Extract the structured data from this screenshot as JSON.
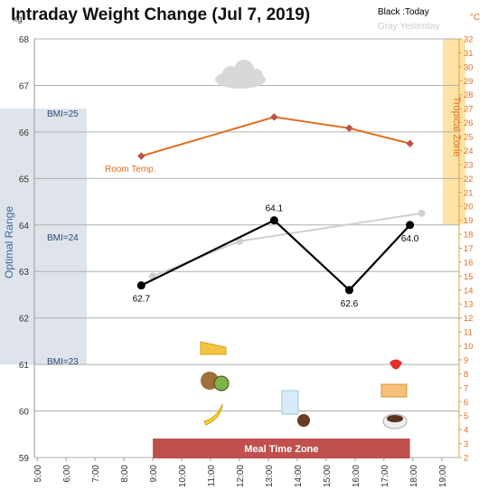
{
  "chart_data": {
    "type": "line",
    "title": "Intraday Weight Change (Jul 7, 2019)",
    "y_unit": "kg",
    "y2_unit": "°C",
    "xlim": [
      4.9,
      19.6
    ],
    "xticks": [
      {
        "value": 5,
        "label": "5:00"
      },
      {
        "value": 6,
        "label": "6:00"
      },
      {
        "value": 7,
        "label": "7:00"
      },
      {
        "value": 8,
        "label": "8:00"
      },
      {
        "value": 9,
        "label": "9:00"
      },
      {
        "value": 10,
        "label": "10:00"
      },
      {
        "value": 11,
        "label": "11:00"
      },
      {
        "value": 12,
        "label": "12:00"
      },
      {
        "value": 13,
        "label": "13:00"
      },
      {
        "value": 14,
        "label": "14:00"
      },
      {
        "value": 15,
        "label": "15:00"
      },
      {
        "value": 16,
        "label": "16:00"
      },
      {
        "value": 17,
        "label": "17:00"
      },
      {
        "value": 18,
        "label": "18:00"
      },
      {
        "value": 19,
        "label": "19:00"
      }
    ],
    "ylim": [
      59,
      68
    ],
    "yticks": [
      59,
      60,
      61,
      62,
      63,
      64,
      65,
      66,
      67,
      68
    ],
    "y2lim": [
      2,
      32
    ],
    "y2ticks": [
      2,
      3,
      4,
      5,
      6,
      7,
      8,
      9,
      10,
      11,
      12,
      13,
      14,
      15,
      16,
      17,
      18,
      19,
      20,
      21,
      22,
      23,
      24,
      25,
      26,
      27,
      28,
      29,
      30,
      31,
      32
    ],
    "grid": true,
    "series": [
      {
        "name": "Gray:Yesterday",
        "color": "#d0d0d0",
        "x": [
          9.0,
          12.0,
          18.3
        ],
        "values": [
          62.9,
          63.65,
          64.25
        ]
      },
      {
        "name": "Black :Today",
        "color": "#000000",
        "x": [
          8.6,
          13.2,
          15.8,
          17.9
        ],
        "values": [
          62.7,
          64.1,
          62.6,
          64.0
        ],
        "value_labels": [
          "62.7",
          "64.1",
          "62.6",
          "64.0"
        ]
      },
      {
        "name": "Room Temp.",
        "color": "#e07020",
        "axis": "y2",
        "x": [
          8.6,
          13.2,
          15.8,
          17.9
        ],
        "values": [
          23.6,
          26.4,
          25.6,
          24.5
        ]
      }
    ],
    "optimal_range": {
      "label": "Optimal Range",
      "ylim": [
        61,
        66.5
      ]
    },
    "bmi_labels": [
      "BMI=25",
      "BMI=24",
      "BMI=23"
    ],
    "tropical_zone": {
      "label": "Tropical Zone",
      "y2lim": [
        18.7,
        32
      ]
    },
    "meal_zone": {
      "label": "Meal Time Zone",
      "xlim": [
        9,
        17.9
      ]
    }
  }
}
